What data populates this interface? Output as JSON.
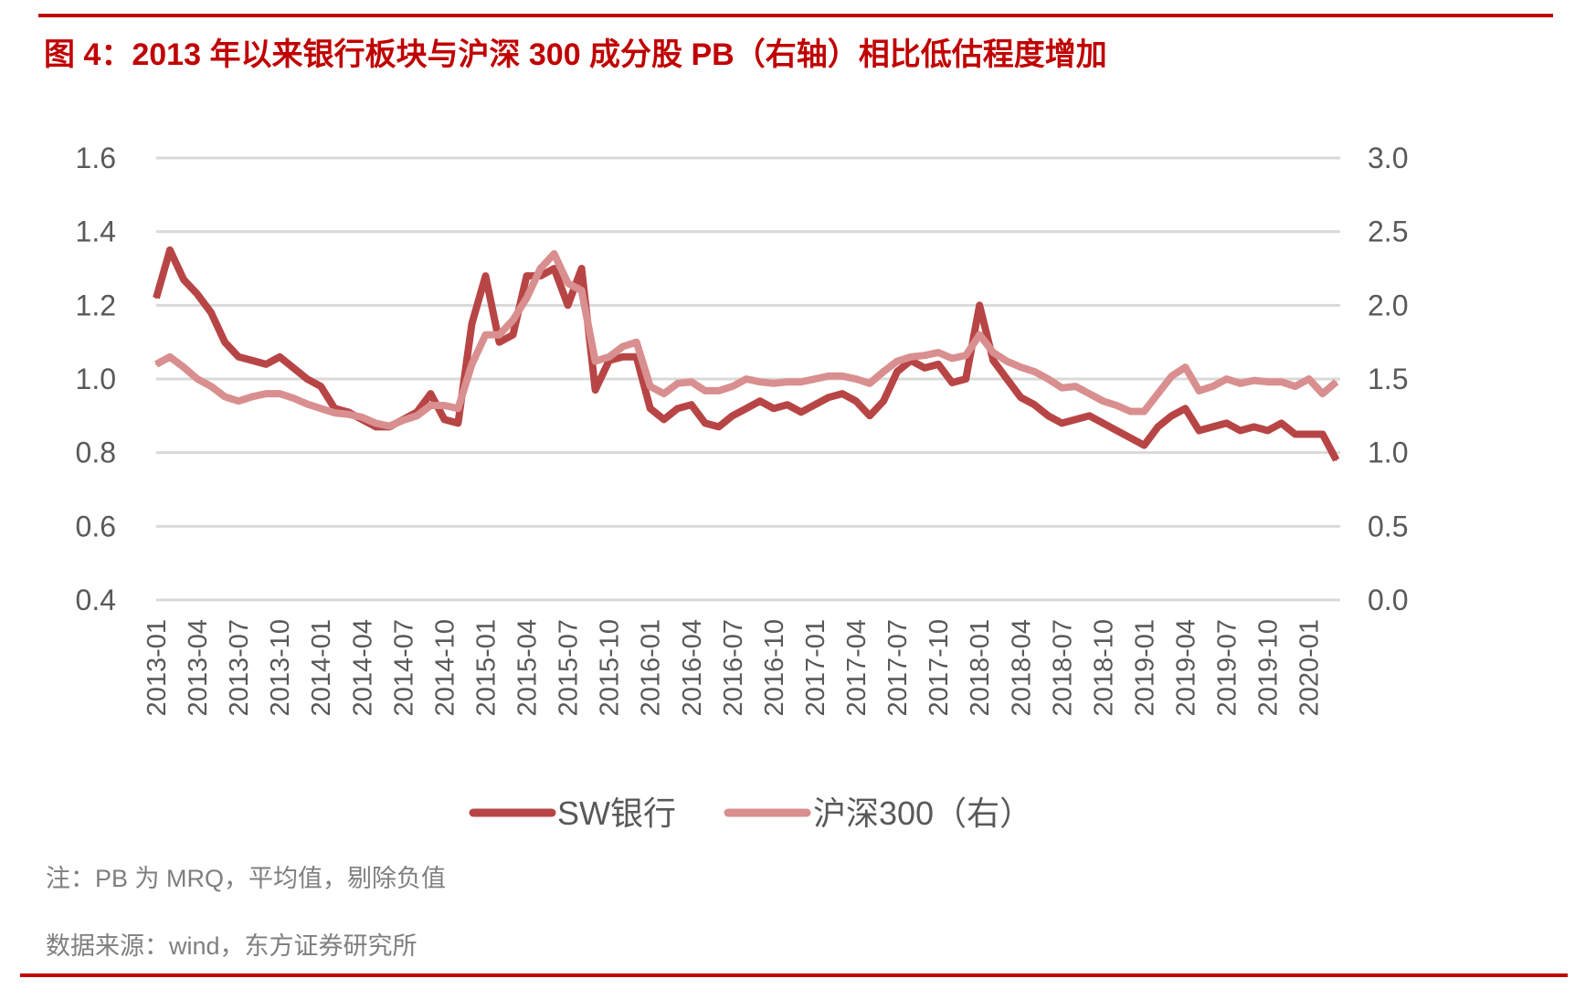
{
  "title": "图 4：2013 年以来银行板块与沪深 300 成分股 PB（右轴）相比低估程度增加",
  "note": "注：PB 为 MRQ，平均值，剔除负值",
  "source": "数据来源：wind，东方证券研究所",
  "colors": {
    "accent": "#c00000",
    "sw_bank": "#b84545",
    "hs300": "#d98f8f",
    "grid": "#d9d9d9"
  },
  "chart_data": {
    "type": "line",
    "title": "图 4：2013 年以来银行板块与沪深 300 成分股 PB（右轴）相比低估程度增加",
    "grid": true,
    "legend_position": "bottom",
    "y_left": {
      "lim": [
        0.4,
        1.6
      ],
      "ticks": [
        "0.4",
        "0.6",
        "0.8",
        "1.0",
        "1.2",
        "1.4",
        "1.6"
      ]
    },
    "y_right": {
      "lim": [
        0.0,
        3.0
      ],
      "ticks": [
        "0.0",
        "0.5",
        "1.0",
        "1.5",
        "2.0",
        "2.5",
        "3.0"
      ]
    },
    "x_ticks": [
      "2013-01",
      "2013-04",
      "2013-07",
      "2013-10",
      "2014-01",
      "2014-04",
      "2014-07",
      "2014-10",
      "2015-01",
      "2015-04",
      "2015-07",
      "2015-10",
      "2016-01",
      "2016-04",
      "2016-07",
      "2016-10",
      "2017-01",
      "2017-04",
      "2017-07",
      "2017-10",
      "2018-01",
      "2018-04",
      "2018-07",
      "2018-10",
      "2019-01",
      "2019-04",
      "2019-07",
      "2019-10",
      "2020-01"
    ],
    "x_start": "2013-01",
    "x_step": "month",
    "series": [
      {
        "name": "SW银行",
        "axis": "left",
        "values": [
          1.22,
          1.35,
          1.27,
          1.23,
          1.18,
          1.1,
          1.06,
          1.05,
          1.04,
          1.06,
          1.03,
          1.0,
          0.98,
          0.92,
          0.91,
          0.89,
          0.87,
          0.87,
          0.89,
          0.91,
          0.96,
          0.89,
          0.88,
          1.15,
          1.28,
          1.1,
          1.12,
          1.28,
          1.28,
          1.3,
          1.2,
          1.3,
          0.97,
          1.05,
          1.06,
          1.06,
          0.92,
          0.89,
          0.92,
          0.93,
          0.88,
          0.87,
          0.9,
          0.92,
          0.94,
          0.92,
          0.93,
          0.91,
          0.93,
          0.95,
          0.96,
          0.94,
          0.9,
          0.94,
          1.02,
          1.05,
          1.03,
          1.04,
          0.99,
          1.0,
          1.2,
          1.05,
          1.0,
          0.95,
          0.93,
          0.9,
          0.88,
          0.89,
          0.9,
          0.88,
          0.86,
          0.84,
          0.82,
          0.87,
          0.9,
          0.92,
          0.86,
          0.87,
          0.88,
          0.86,
          0.87,
          0.86,
          0.88,
          0.85,
          0.85,
          0.85,
          0.78
        ]
      },
      {
        "name": "沪深300（右）",
        "axis": "right",
        "values": [
          1.6,
          1.65,
          1.58,
          1.5,
          1.45,
          1.38,
          1.35,
          1.38,
          1.4,
          1.4,
          1.37,
          1.33,
          1.3,
          1.27,
          1.26,
          1.24,
          1.2,
          1.18,
          1.22,
          1.25,
          1.32,
          1.32,
          1.3,
          1.6,
          1.8,
          1.8,
          1.9,
          2.05,
          2.25,
          2.35,
          2.15,
          2.1,
          1.62,
          1.65,
          1.72,
          1.75,
          1.45,
          1.4,
          1.47,
          1.48,
          1.42,
          1.42,
          1.45,
          1.5,
          1.48,
          1.47,
          1.48,
          1.48,
          1.5,
          1.52,
          1.52,
          1.5,
          1.47,
          1.55,
          1.62,
          1.65,
          1.66,
          1.68,
          1.64,
          1.66,
          1.8,
          1.68,
          1.62,
          1.58,
          1.55,
          1.5,
          1.44,
          1.45,
          1.4,
          1.35,
          1.32,
          1.28,
          1.28,
          1.4,
          1.52,
          1.58,
          1.42,
          1.45,
          1.5,
          1.47,
          1.49,
          1.48,
          1.48,
          1.45,
          1.5,
          1.4,
          1.48
        ]
      }
    ]
  }
}
